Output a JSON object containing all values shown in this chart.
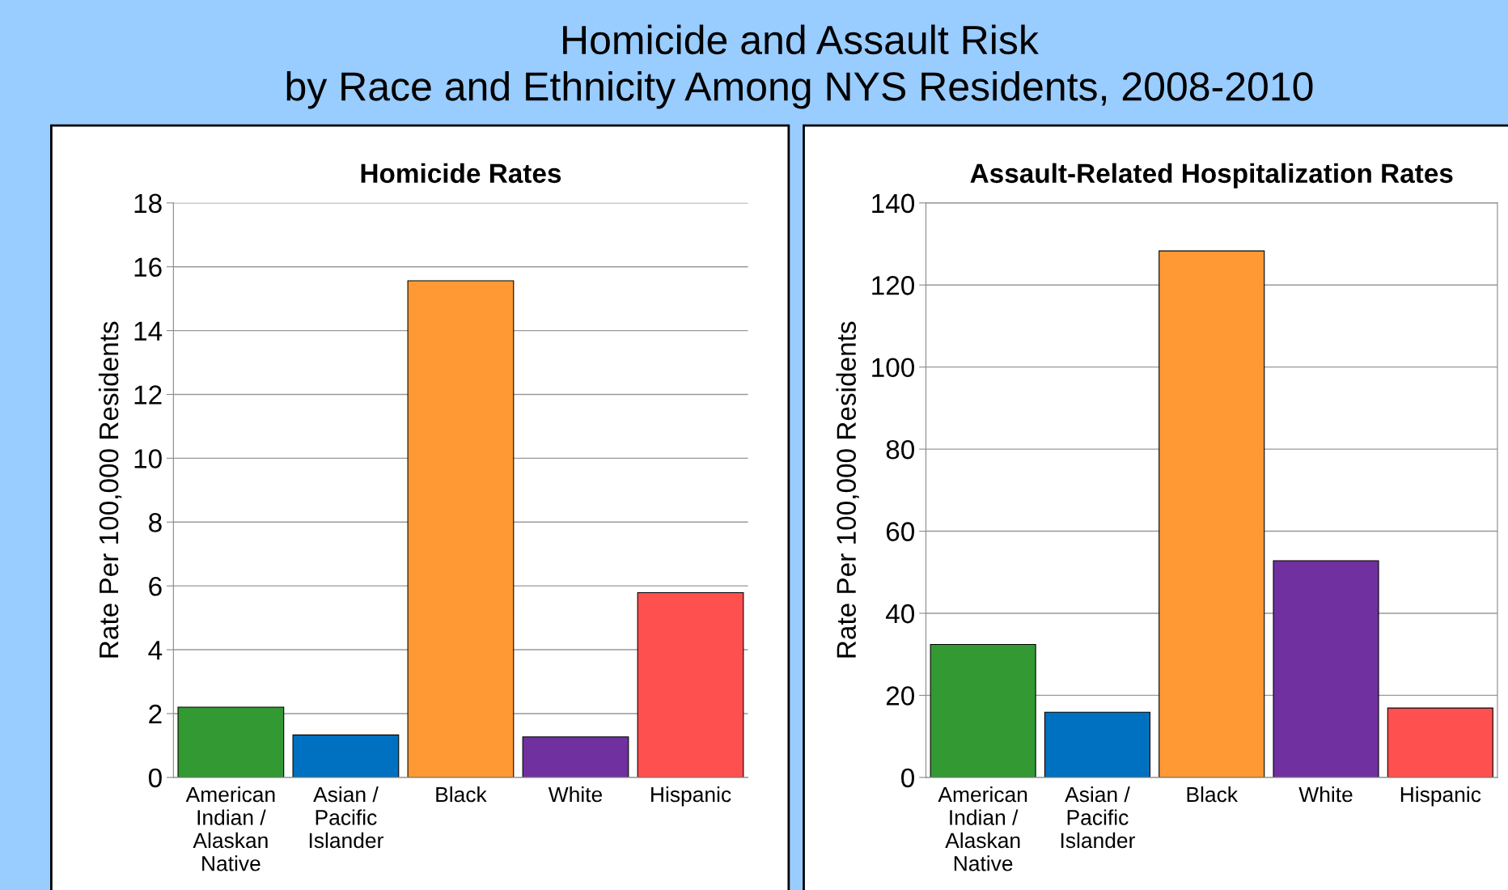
{
  "chart_data": [
    {
      "type": "bar",
      "title": "Homicide Rates",
      "ylabel": "Rate Per 100,000 Residents",
      "annotations": [
        "Homicide and Assault Risk\nby Race and Ethnicity Among NYS Residents, 2008-2010"
      ],
      "categories": [
        "American\nIndian /\nAlaskan\nNative",
        "Asian /\nPacific\nIslander",
        "Black",
        "White",
        "Hispanic"
      ],
      "values": [
        2.2,
        1.33,
        15.56,
        1.27,
        5.79
      ],
      "colors": [
        "#339933",
        "#0070c0",
        "#ff9933",
        "#7030a0",
        "#ff5050"
      ],
      "ylim": [
        0,
        18
      ],
      "yticks": [
        0,
        2,
        4,
        6,
        8,
        10,
        12,
        14,
        16,
        18
      ],
      "grid": "y"
    },
    {
      "type": "bar",
      "title": "Assault-Related Hospitalization Rates",
      "ylabel": "Rate Per 100,000 Residents",
      "categories": [
        "American\nIndian /\nAlaskan\nNative",
        "Asian /\nPacific\nIslander",
        "Black",
        "White",
        "Hispanic"
      ],
      "values": [
        32.4,
        15.9,
        128.3,
        52.8,
        16.9
      ],
      "colors": [
        "#339933",
        "#0070c0",
        "#ff9933",
        "#7030a0",
        "#ff5050"
      ],
      "ylim": [
        0,
        140
      ],
      "yticks": [
        0,
        20,
        40,
        60,
        80,
        100,
        120,
        140
      ],
      "grid": "y"
    }
  ]
}
